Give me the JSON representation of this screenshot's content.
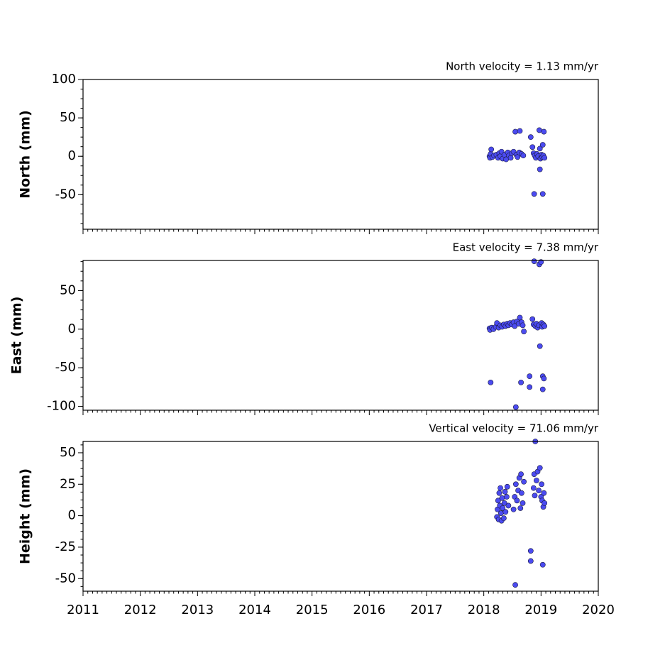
{
  "chart_data": [
    {
      "type": "scatter",
      "title": "North velocity = 1.13 mm/yr",
      "y_label": "North (mm)",
      "color": "#4b4bf0",
      "xlim": [
        2011,
        2020
      ],
      "xticks": [
        2011,
        2012,
        2013,
        2014,
        2015,
        2016,
        2017,
        2018,
        2019,
        2020
      ],
      "ylim": [
        -95,
        100
      ],
      "yticks": [
        -50,
        0,
        50,
        100
      ],
      "x": [
        2018.1,
        2018.11,
        2018.12,
        2018.13,
        2018.15,
        2018.18,
        2018.22,
        2018.25,
        2018.27,
        2018.29,
        2018.31,
        2018.33,
        2018.36,
        2018.39,
        2018.42,
        2018.44,
        2018.47,
        2018.49,
        2018.52,
        2018.55,
        2018.57,
        2018.59,
        2018.62,
        2018.63,
        2018.66,
        2018.69,
        2018.82,
        2018.85,
        2018.87,
        2018.88,
        2018.89,
        2018.91,
        2018.93,
        2018.95,
        2018.97,
        2018.98,
        2018.98,
        2018.99,
        2019.01,
        2019.02,
        2019.03,
        2019.03,
        2019.04,
        2019.05,
        2019.06
      ],
      "values": [
        0,
        -2,
        3,
        9,
        -1,
        1,
        2,
        -2,
        4,
        0,
        6,
        -3,
        2,
        -4,
        5,
        1,
        -2,
        4,
        6,
        32,
        2,
        -1,
        5,
        33,
        3,
        1,
        25,
        12,
        4,
        -49,
        1,
        -2,
        3,
        0,
        34,
        10,
        -17,
        -3,
        2,
        -1,
        15,
        -49,
        1,
        32,
        -2
      ]
    },
    {
      "type": "scatter",
      "title": "East velocity = 7.38 mm/yr",
      "y_label": "East (mm)",
      "color": "#4b4bf0",
      "xlim": [
        2011,
        2020
      ],
      "xticks": [
        2011,
        2012,
        2013,
        2014,
        2015,
        2016,
        2017,
        2018,
        2019,
        2020
      ],
      "ylim": [
        -105,
        89
      ],
      "yticks": [
        -100,
        -50,
        0,
        50
      ],
      "x": [
        2018.1,
        2018.11,
        2018.12,
        2018.14,
        2018.17,
        2018.21,
        2018.23,
        2018.26,
        2018.29,
        2018.32,
        2018.35,
        2018.38,
        2018.41,
        2018.43,
        2018.46,
        2018.49,
        2018.52,
        2018.54,
        2018.56,
        2018.58,
        2018.61,
        2018.63,
        2018.65,
        2018.66,
        2018.68,
        2018.7,
        2018.8,
        2018.8,
        2018.85,
        2018.87,
        2018.88,
        2018.9,
        2018.92,
        2018.94,
        2018.96,
        2018.97,
        2018.98,
        2019.0,
        2019.01,
        2019.02,
        2019.03,
        2019.03,
        2019.04,
        2019.05,
        2019.06
      ],
      "values": [
        1,
        -1,
        -69,
        2,
        0,
        3,
        8,
        2,
        5,
        3,
        6,
        4,
        7,
        5,
        8,
        6,
        9,
        4,
        -101,
        10,
        7,
        15,
        -69,
        9,
        5,
        -3,
        -61,
        -75,
        13,
        6,
        88,
        4,
        7,
        2,
        5,
        84,
        -22,
        87,
        8,
        3,
        -61,
        -78,
        6,
        -64,
        4
      ]
    },
    {
      "type": "scatter",
      "title": "Vertical velocity = 71.06 mm/yr",
      "y_label": "Height (mm)",
      "color": "#4b4bf0",
      "xlim": [
        2011,
        2020
      ],
      "xticks": [
        2011,
        2012,
        2013,
        2014,
        2015,
        2016,
        2017,
        2018,
        2019,
        2020
      ],
      "ylim": [
        -60,
        59
      ],
      "yticks": [
        -50,
        -25,
        0,
        25,
        50
      ],
      "x": [
        2018.23,
        2018.24,
        2018.25,
        2018.26,
        2018.27,
        2018.28,
        2018.29,
        2018.3,
        2018.31,
        2018.32,
        2018.33,
        2018.35,
        2018.36,
        2018.37,
        2018.38,
        2018.4,
        2018.41,
        2018.43,
        2018.52,
        2018.54,
        2018.55,
        2018.56,
        2018.58,
        2018.6,
        2018.62,
        2018.64,
        2018.65,
        2018.66,
        2018.68,
        2018.7,
        2018.82,
        2018.82,
        2018.87,
        2018.88,
        2018.89,
        2018.9,
        2018.92,
        2018.94,
        2018.96,
        2018.98,
        2019.0,
        2019.01,
        2019.02,
        2019.03,
        2019.04,
        2019.05,
        2019.06
      ],
      "values": [
        -1,
        5,
        12,
        -3,
        18,
        8,
        22,
        2,
        -4,
        14,
        6,
        -2,
        10,
        19,
        3,
        15,
        23,
        8,
        5,
        15,
        -55,
        25,
        12,
        20,
        30,
        6,
        33,
        18,
        10,
        27,
        -28,
        -36,
        22,
        33,
        16,
        59,
        28,
        35,
        20,
        38,
        15,
        25,
        12,
        -39,
        7,
        18,
        10
      ]
    }
  ]
}
